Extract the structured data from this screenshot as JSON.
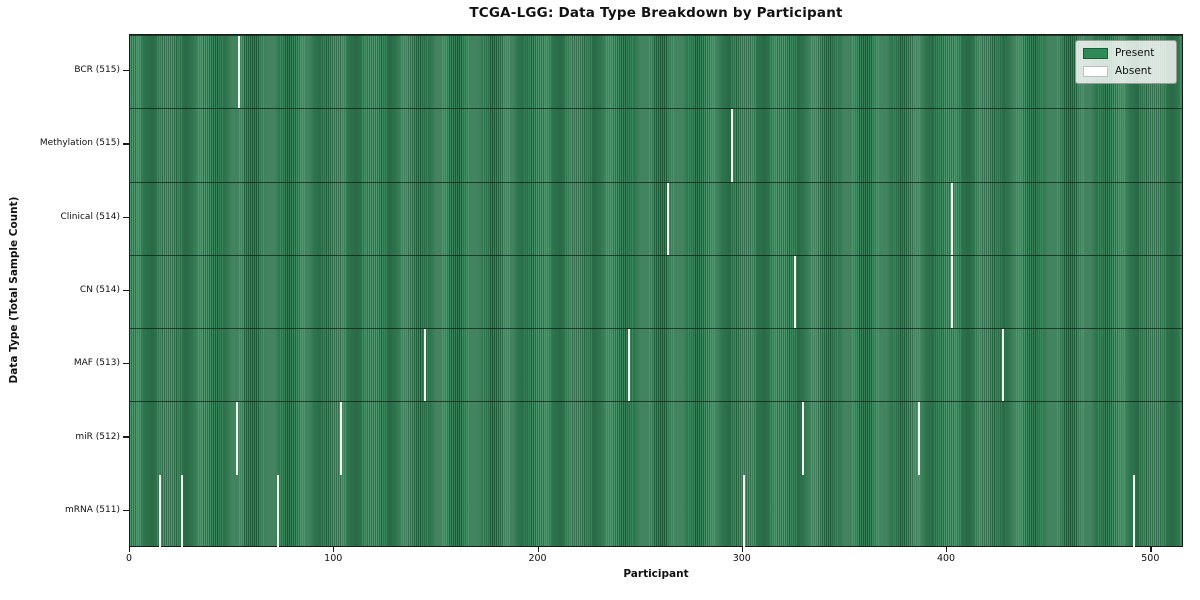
{
  "chart_data": {
    "type": "heatmap",
    "title": "TCGA-LGG: Data Type Breakdown by Participant",
    "xlabel": "Participant",
    "ylabel": "Data Type (Total Sample Count)",
    "x_ticks": [
      0,
      100,
      200,
      300,
      400,
      500
    ],
    "x_range": [
      0,
      516
    ],
    "total_participants": 516,
    "grid": false,
    "legend_position": "upper right",
    "legend": {
      "present_label": "Present",
      "absent_label": "Absent"
    },
    "rows": [
      {
        "label": "BCR (515)",
        "data_type": "BCR",
        "present_count": 515,
        "absent_participants": [
          53
        ]
      },
      {
        "label": "Methylation (515)",
        "data_type": "Methylation",
        "present_count": 515,
        "absent_participants": [
          294
        ]
      },
      {
        "label": "Clinical (514)",
        "data_type": "Clinical",
        "present_count": 514,
        "absent_participants": [
          263,
          402
        ]
      },
      {
        "label": "CN (514)",
        "data_type": "CN",
        "present_count": 514,
        "absent_participants": [
          325,
          402
        ]
      },
      {
        "label": "MAF (513)",
        "data_type": "MAF",
        "present_count": 513,
        "absent_participants": [
          144,
          244,
          427
        ]
      },
      {
        "label": "miR (512)",
        "data_type": "miR",
        "present_count": 512,
        "absent_participants": [
          52,
          103,
          329,
          386
        ]
      },
      {
        "label": "mRNA (511)",
        "data_type": "mRNA",
        "present_count": 511,
        "absent_participants": [
          14,
          25,
          72,
          300,
          491
        ]
      }
    ],
    "colors": {
      "present": "#2e8b57",
      "stripe_light": "#3c8b60",
      "stripe_dark": "#20603c",
      "absent": "#f2f2ee",
      "axis": "#1a1a1a"
    }
  }
}
